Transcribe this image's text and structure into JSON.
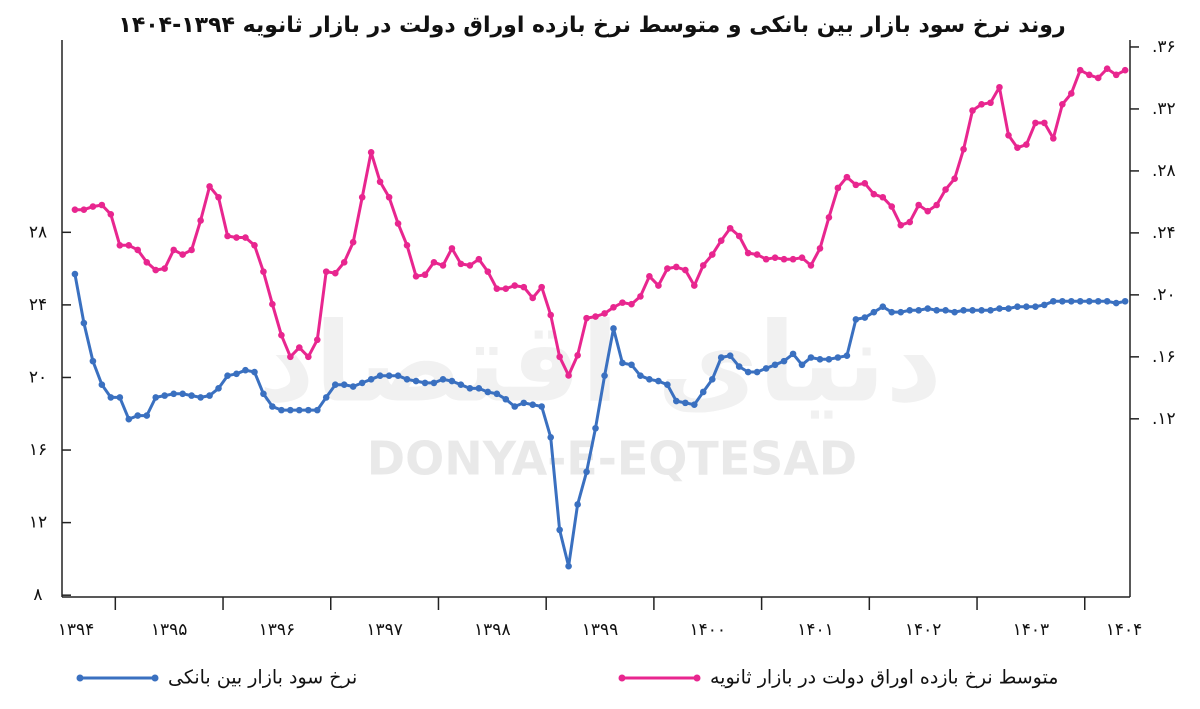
{
  "chart_data": {
    "type": "line",
    "title": "روند نرخ سود بازار بین بانکی و متوسط نرخ بازده اوراق دولت در بازار ثانویه ۱۳۹۴-۱۴۰۴",
    "watermark": "DONYA-E-EQTESAD",
    "watermark_fa": "دنیای اقتصاد",
    "xlim": [
      1394.505,
      1404.42
    ],
    "xticks": [
      {
        "value": 1394,
        "label": "۱۳۹۴"
      },
      {
        "value": 1395,
        "label": "۱۳۹۵"
      },
      {
        "value": 1396,
        "label": "۱۳۹۶"
      },
      {
        "value": 1397,
        "label": "۱۳۹۷"
      },
      {
        "value": 1398,
        "label": "۱۳۹۸"
      },
      {
        "value": 1399,
        "label": "۱۳۹۹"
      },
      {
        "value": 1400,
        "label": "۱۴۰۰"
      },
      {
        "value": 1401,
        "label": "۱۴۰۱"
      },
      {
        "value": 1402,
        "label": "۱۴۰۲"
      },
      {
        "value": 1403,
        "label": "۱۴۰۳"
      },
      {
        "value": 1404,
        "label": "۱۴۰۴"
      }
    ],
    "ylim": [
      7.9,
      38.6
    ],
    "yticks": [
      {
        "value": 8,
        "label": "۸"
      },
      {
        "value": 12,
        "label": "۱۲"
      },
      {
        "value": 16,
        "label": "۱۶"
      },
      {
        "value": 20,
        "label": "۲۰"
      },
      {
        "value": 24,
        "label": "۲۴"
      },
      {
        "value": 28,
        "label": "۲۸"
      }
    ],
    "y2lim": [
      0.005,
      0.3645
    ],
    "y2ticks": [
      {
        "value": 0.12,
        "label": ".۱۲"
      },
      {
        "value": 0.16,
        "label": ".۱۶"
      },
      {
        "value": 0.2,
        "label": ".۲۰"
      },
      {
        "value": 0.24,
        "label": ".۲۴"
      },
      {
        "value": 0.28,
        "label": ".۲۸"
      },
      {
        "value": 0.32,
        "label": ".۳۲"
      },
      {
        "value": 0.36,
        "label": ".۳۶"
      }
    ],
    "x": [
      1394.625,
      1394.708,
      1394.792,
      1394.875,
      1394.958,
      1395.042,
      1395.125,
      1395.208,
      1395.292,
      1395.375,
      1395.458,
      1395.542,
      1395.625,
      1395.708,
      1395.792,
      1395.875,
      1395.958,
      1396.042,
      1396.125,
      1396.208,
      1396.292,
      1396.375,
      1396.458,
      1396.542,
      1396.625,
      1396.708,
      1396.792,
      1396.875,
      1396.958,
      1397.042,
      1397.125,
      1397.208,
      1397.292,
      1397.375,
      1397.458,
      1397.542,
      1397.625,
      1397.708,
      1397.792,
      1397.875,
      1397.958,
      1398.042,
      1398.125,
      1398.208,
      1398.292,
      1398.375,
      1398.458,
      1398.542,
      1398.625,
      1398.708,
      1398.792,
      1398.875,
      1398.958,
      1399.042,
      1399.125,
      1399.208,
      1399.292,
      1399.375,
      1399.458,
      1399.542,
      1399.625,
      1399.708,
      1399.792,
      1399.875,
      1399.958,
      1400.042,
      1400.125,
      1400.208,
      1400.292,
      1400.375,
      1400.458,
      1400.542,
      1400.625,
      1400.708,
      1400.792,
      1400.875,
      1400.958,
      1401.042,
      1401.125,
      1401.208,
      1401.292,
      1401.375,
      1401.458,
      1401.542,
      1401.625,
      1401.708,
      1401.792,
      1401.875,
      1401.958,
      1402.042,
      1402.125,
      1402.208,
      1402.292,
      1402.375,
      1402.458,
      1402.542,
      1402.625,
      1402.708,
      1402.792,
      1402.875,
      1402.958,
      1403.042,
      1403.125,
      1403.208,
      1403.292,
      1403.375,
      1403.458,
      1403.542,
      1403.625,
      1403.708,
      1403.792,
      1403.875,
      1403.958,
      1404.042,
      1404.125,
      1404.208,
      1404.292,
      1404.375
    ],
    "series": [
      {
        "name": "نرخ سود بازار بین بانکی",
        "color": "#3a70c0",
        "values": [
          25.7,
          23.0,
          20.9,
          19.6,
          18.9,
          18.9,
          17.7,
          17.9,
          17.9,
          18.9,
          19.0,
          19.1,
          19.1,
          19.0,
          18.9,
          19.0,
          19.4,
          20.1,
          20.2,
          20.4,
          20.3,
          19.1,
          18.4,
          18.2,
          18.2,
          18.2,
          18.2,
          18.2,
          18.9,
          19.6,
          19.6,
          19.5,
          19.7,
          19.9,
          20.1,
          20.1,
          20.1,
          19.9,
          19.8,
          19.7,
          19.7,
          19.9,
          19.8,
          19.6,
          19.4,
          19.4,
          19.2,
          19.1,
          18.8,
          18.4,
          18.6,
          18.5,
          18.4,
          16.7,
          11.6,
          9.6,
          13.0,
          14.8,
          17.2,
          20.1,
          22.7,
          20.8,
          20.7,
          20.1,
          19.9,
          19.8,
          19.6,
          18.7,
          18.6,
          18.5,
          19.2,
          19.9,
          21.1,
          21.2,
          20.6,
          20.3,
          20.3,
          20.5,
          20.7,
          20.9,
          21.3,
          20.7,
          21.1,
          21.0,
          21.0,
          21.1,
          21.2,
          23.2,
          23.3,
          23.6,
          23.9,
          23.6,
          23.6,
          23.7,
          23.7,
          23.8,
          23.7,
          23.7,
          23.6,
          23.7,
          23.7,
          23.7,
          23.7,
          23.8,
          23.8,
          23.9,
          23.9,
          23.9,
          24.0,
          24.2,
          24.2,
          24.2,
          24.2,
          24.2,
          24.2,
          24.2,
          24.1,
          24.2
        ]
      },
      {
        "name": "متوسط نرخ بازده اوراق دولت در بازار ثانویه",
        "color": "#e8268f",
        "axis": "y2",
        "values": [
          0.255,
          0.255,
          0.257,
          0.258,
          0.252,
          0.232,
          0.232,
          0.229,
          0.221,
          0.216,
          0.217,
          0.229,
          0.226,
          0.229,
          0.248,
          0.27,
          0.263,
          0.238,
          0.237,
          0.237,
          0.232,
          0.215,
          0.194,
          0.174,
          0.16,
          0.166,
          0.16,
          0.171,
          0.215,
          0.214,
          0.221,
          0.234,
          0.263,
          0.292,
          0.273,
          0.263,
          0.246,
          0.232,
          0.212,
          0.213,
          0.221,
          0.219,
          0.23,
          0.22,
          0.219,
          0.223,
          0.215,
          0.204,
          0.204,
          0.206,
          0.205,
          0.198,
          0.205,
          0.187,
          0.16,
          0.148,
          0.161,
          0.185,
          0.186,
          0.188,
          0.192,
          0.195,
          0.194,
          0.199,
          0.212,
          0.206,
          0.217,
          0.218,
          0.216,
          0.206,
          0.219,
          0.226,
          0.235,
          0.243,
          0.238,
          0.227,
          0.226,
          0.223,
          0.224,
          0.223,
          0.223,
          0.224,
          0.219,
          0.23,
          0.25,
          0.269,
          0.276,
          0.271,
          0.272,
          0.265,
          0.263,
          0.257,
          0.245,
          0.247,
          0.258,
          0.254,
          0.258,
          0.268,
          0.275,
          0.294,
          0.319,
          0.323,
          0.324,
          0.334,
          0.303,
          0.295,
          0.297,
          0.311,
          0.311,
          0.301,
          0.323,
          0.33,
          0.345,
          0.342,
          0.34,
          0.346,
          0.342,
          0.345
        ]
      }
    ]
  }
}
